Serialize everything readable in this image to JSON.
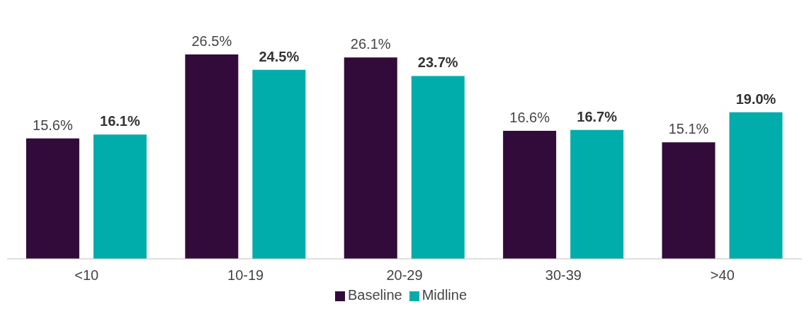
{
  "chart_data": {
    "type": "bar",
    "categories": [
      "<10",
      "10-19",
      "20-29",
      "30-39",
      ">40"
    ],
    "series": [
      {
        "name": "Baseline",
        "color": "#320b3a",
        "values": [
          15.6,
          26.5,
          26.1,
          16.6,
          15.1
        ],
        "value_labels": [
          "15.6%",
          "26.5%",
          "26.1%",
          "16.6%",
          "15.1%"
        ]
      },
      {
        "name": "Midline",
        "color": "#00adab",
        "values": [
          16.1,
          24.5,
          23.7,
          16.7,
          19.0
        ],
        "value_labels": [
          "16.1%",
          "24.5%",
          "23.7%",
          "16.7%",
          "19.0%"
        ]
      }
    ],
    "legend": "bottom"
  }
}
